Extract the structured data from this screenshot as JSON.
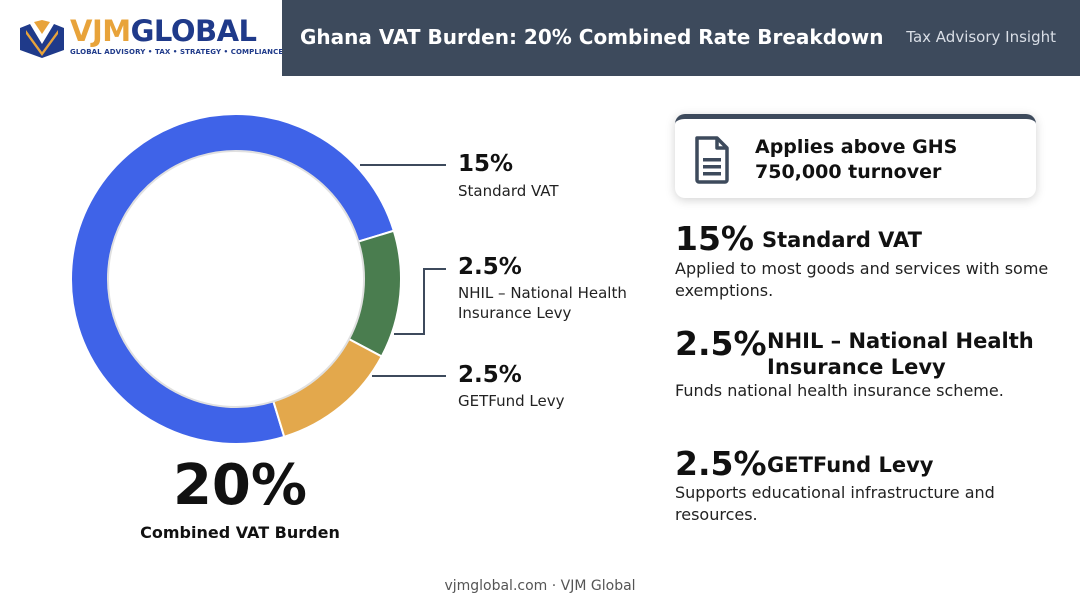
{
  "logo": {
    "brand_part1": "VJM",
    "brand_part2": "GLOBAL",
    "tagline": "GLOBAL ADVISORY • TAX • STRATEGY • COMPLIANCE"
  },
  "header": {
    "title": "Ghana VAT Burden: 20% Combined Rate Breakdown",
    "right_label": "Tax Advisory Insight"
  },
  "chart_data": {
    "type": "pie",
    "style": "donut",
    "slices": [
      {
        "label": "Standard VAT",
        "value": 15,
        "display": "15%",
        "color": "#3f63e8"
      },
      {
        "label": "NHIL – National Health Insurance Levy",
        "value": 2.5,
        "display": "2.5%",
        "color": "#4a7d4f"
      },
      {
        "label": "GETFund Levy",
        "value": 2.5,
        "display": "2.5%",
        "color": "#e3a84c"
      }
    ],
    "callouts": [
      {
        "pct": "15%",
        "name": "Standard VAT"
      },
      {
        "pct": "2.5%",
        "name": "NHIL – National Health Insurance Levy"
      },
      {
        "pct": "2.5%",
        "name": "GETFund Levy"
      }
    ],
    "center_value": "20%",
    "center_label": "Combined VAT Burden"
  },
  "info_card": {
    "text": "Applies above GHS 750,000 turnover",
    "icon": "document-icon"
  },
  "details": [
    {
      "pct": "15%",
      "title": "Standard VAT",
      "desc": "Applied to most goods and services with some exemptions."
    },
    {
      "pct": "2.5%",
      "title": "NHIL – National Health Insurance Levy",
      "desc": "Funds national health insurance scheme."
    },
    {
      "pct": "2.5%",
      "title": "GETFund Levy",
      "desc": "Supports educational infrastructure and resources."
    }
  ],
  "footer": {
    "text": "vjmglobal.com · VJM Global"
  }
}
